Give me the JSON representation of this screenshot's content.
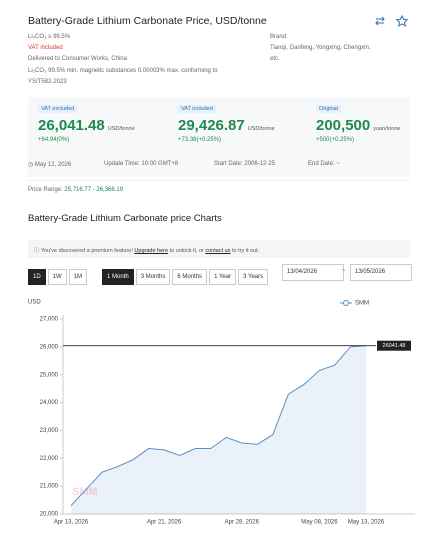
{
  "header": {
    "title": "Battery-Grade Lithium Carbonate Price, USD/tonne"
  },
  "spec": {
    "purity": "Li₂CO₃ ≥ 99.5%",
    "vat": "VAT included",
    "delivery": "Delivered to Consumer Works, China",
    "standard_1": "Li₂CO₃ 99.5% min, magnetic substances 0.00003% max, conforming to",
    "standard_2": "YS/T582-2023"
  },
  "brand": {
    "label": "Brand:",
    "names_1": "Tianqi, Ganfeng, Yongxing, Chengxin,",
    "names_2": "etc."
  },
  "prices": [
    {
      "tag": "VAT excluded",
      "value": "26,041.48",
      "unit": "USD/tonne",
      "change": "+64.94(0%)"
    },
    {
      "tag": "VAT included",
      "value": "29,426.87",
      "unit": "USD/tonne",
      "change": "+73.38(+0.25%)"
    },
    {
      "tag": "Original",
      "value": "200,500",
      "unit": "yuan/tonne",
      "change": "+500(+0.25%)"
    }
  ],
  "meta": {
    "date": "May 12, 2026",
    "update": "Update Time: 10:00 GMT+8",
    "start": "Start Date: 2006-12-25",
    "end": "End Date: ~"
  },
  "range": {
    "label": "Price Range:",
    "value": "25,716.77 - 26,366.19"
  },
  "section_title": "Battery-Grade Lithium Carbonate price Charts",
  "notice": {
    "text_1": "You've discovered a premium feature! ",
    "link_1": "Upgrade here",
    "text_2": " to unlock it, or ",
    "link_2": "contact us",
    "text_3": " to try it out."
  },
  "controls": {
    "granularity": [
      "1D",
      "1W",
      "1M"
    ],
    "ranges": [
      "1 Month",
      "3 Months",
      "6 Months",
      "1 Year",
      "3 Years"
    ],
    "start_date": "13/04/2026",
    "separator": "~",
    "end_date": "13/05/2026"
  },
  "chart_data": {
    "type": "line",
    "y_label": "USD",
    "watermark": "SMM",
    "categories": [
      "Apr 13, 2026",
      null,
      null,
      null,
      null,
      null,
      "Apr 21, 2026",
      null,
      null,
      null,
      null,
      "Apr 28, 2026",
      null,
      null,
      null,
      null,
      "May 08, 2026",
      null,
      null,
      "May 13, 2026"
    ],
    "series": [
      {
        "name": "SMM",
        "color": "#5b8fc9",
        "values": [
          20300,
          20900,
          21500,
          21700,
          21950,
          22350,
          22300,
          22100,
          22350,
          22350,
          22750,
          22550,
          22500,
          22850,
          24300,
          24650,
          25150,
          25350,
          26000,
          26041.48
        ]
      }
    ],
    "hline": 26041.48,
    "ylim": [
      20000,
      27000
    ],
    "yticks": [
      {
        "value": 20000,
        "label": "20,000"
      },
      {
        "value": 21000,
        "label": "21,000"
      },
      {
        "value": 22000,
        "label": "22,000"
      },
      {
        "value": 23000,
        "label": "23,000"
      },
      {
        "value": 24000,
        "label": "24,000"
      },
      {
        "value": 25000,
        "label": "25,000"
      },
      {
        "value": 26000,
        "label": "26,000"
      },
      {
        "value": 27000,
        "label": "27,000"
      }
    ]
  }
}
